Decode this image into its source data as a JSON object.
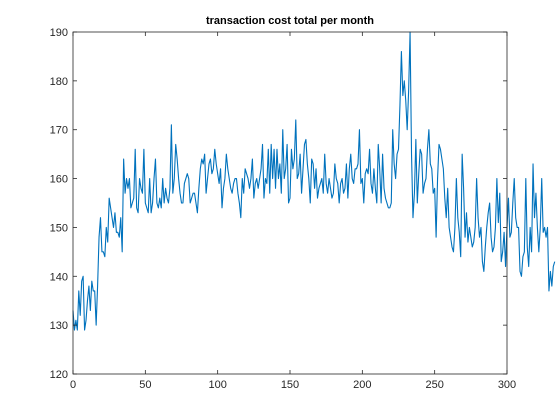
{
  "chart_data": {
    "type": "line",
    "title": "transaction cost total per month",
    "xlabel": "",
    "ylabel": "",
    "xlim": [
      0,
      300
    ],
    "ylim": [
      120,
      190
    ],
    "xticks": [
      0,
      50,
      100,
      150,
      200,
      250,
      300
    ],
    "yticks": [
      120,
      130,
      140,
      150,
      160,
      170,
      180,
      190
    ],
    "grid": false,
    "legend": "none",
    "series_color": "#0072bd",
    "series": [
      {
        "name": "",
        "values": [
          133,
          129,
          131,
          129,
          137,
          132,
          139,
          140,
          129,
          131,
          135,
          138,
          133,
          139,
          137,
          137,
          130,
          138,
          148,
          152,
          145,
          145,
          144,
          150,
          147,
          156,
          154,
          152,
          150,
          153,
          149,
          149,
          148,
          152,
          145,
          164,
          157,
          160,
          158,
          160,
          154,
          155,
          156,
          166,
          154,
          153,
          160,
          158,
          157,
          166,
          155,
          154,
          153,
          160,
          153,
          155,
          160,
          164,
          155,
          154,
          156,
          154,
          160,
          155,
          158,
          156,
          155,
          158,
          171,
          157,
          160,
          167,
          164,
          160,
          157,
          155,
          155,
          159,
          160,
          161,
          160,
          155,
          156,
          157,
          157,
          155,
          153,
          158,
          162,
          164,
          163,
          165,
          157,
          160,
          163,
          164,
          161,
          162,
          166,
          163,
          161,
          159,
          162,
          154,
          158,
          160,
          165,
          162,
          160,
          158,
          157,
          159,
          160,
          160,
          157,
          155,
          152,
          160,
          157,
          162,
          161,
          160,
          158,
          160,
          164,
          156,
          159,
          160,
          158,
          160,
          162,
          167,
          156,
          160,
          159,
          166,
          157,
          167,
          160,
          166,
          158,
          166,
          160,
          163,
          157,
          170,
          160,
          162,
          167,
          155,
          156,
          166,
          162,
          164,
          172,
          160,
          161,
          165,
          157,
          162,
          167,
          168,
          163,
          160,
          155,
          164,
          163,
          158,
          162,
          156,
          158,
          159,
          160,
          157,
          165,
          159,
          157,
          160,
          158,
          156,
          157,
          163,
          160,
          159,
          155,
          159,
          160,
          157,
          158,
          163,
          156,
          162,
          165,
          160,
          159,
          162,
          162,
          163,
          170,
          159,
          160,
          155,
          161,
          162,
          161,
          166,
          159,
          157,
          162,
          158,
          155,
          167,
          162,
          155,
          165,
          158,
          156,
          155,
          154,
          154,
          155,
          170,
          163,
          160,
          165,
          166,
          175,
          186,
          177,
          180,
          176,
          170,
          178,
          190,
          165,
          152,
          157,
          168,
          155,
          161,
          166,
          165,
          157,
          159,
          160,
          166,
          170,
          163,
          162,
          157,
          158,
          148,
          160,
          167,
          166,
          164,
          162,
          156,
          152,
          158,
          150,
          148,
          146,
          145,
          150,
          160,
          152,
          149,
          144,
          165,
          158,
          148,
          153,
          147,
          150,
          148,
          146,
          147,
          150,
          160,
          152,
          148,
          150,
          143,
          141,
          146,
          150,
          153,
          155,
          148,
          145,
          146,
          150,
          160,
          151,
          157,
          143,
          145,
          149,
          142,
          150,
          156,
          148,
          149,
          155,
          160,
          152,
          150,
          150,
          141,
          140,
          144,
          145,
          160,
          146,
          142,
          150,
          145,
          163,
          152,
          157,
          150,
          145,
          150,
          160,
          149,
          150,
          148,
          150,
          137,
          141,
          138,
          142,
          143
        ]
      }
    ]
  }
}
